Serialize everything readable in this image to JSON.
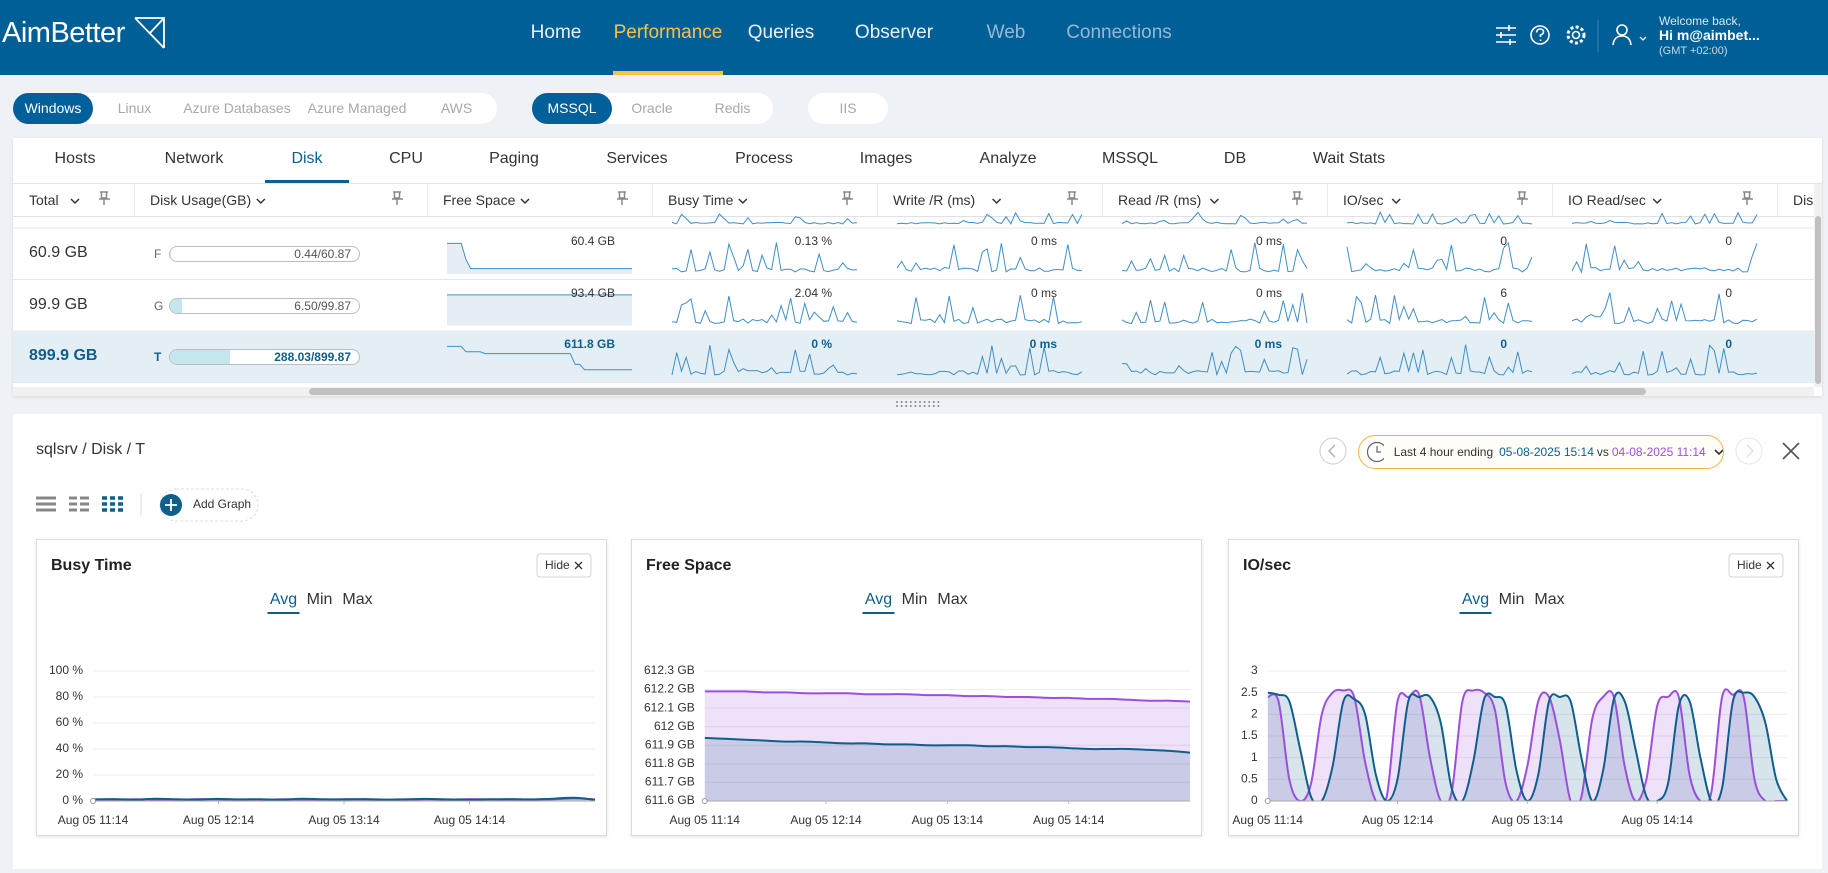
{
  "header": {
    "logo": "AimBetter",
    "nav": [
      {
        "label": "Home"
      },
      {
        "label": "Performance",
        "active": true
      },
      {
        "label": "Queries"
      },
      {
        "label": "Observer"
      },
      {
        "label": "Web",
        "dimmed": true
      },
      {
        "label": "Connections",
        "dimmed": true
      }
    ],
    "welcome": "Welcome back,",
    "user": "Hi m@aimbet...",
    "timezone": "(GMT +02:00)"
  },
  "platforms": [
    [
      {
        "label": "Windows",
        "active": true
      },
      {
        "label": "Linux"
      },
      {
        "label": "Azure Databases"
      },
      {
        "label": "Azure Managed"
      },
      {
        "label": "AWS"
      }
    ],
    [
      {
        "label": "MSSQL",
        "active": true
      },
      {
        "label": "Oracle"
      },
      {
        "label": "Redis"
      }
    ],
    [
      {
        "label": "IIS"
      }
    ]
  ],
  "tabs": [
    {
      "label": "Hosts"
    },
    {
      "label": "Network"
    },
    {
      "label": "Disk",
      "active": true
    },
    {
      "label": "CPU"
    },
    {
      "label": "Paging"
    },
    {
      "label": "Services"
    },
    {
      "label": "Process"
    },
    {
      "label": "Images"
    },
    {
      "label": "Analyze"
    },
    {
      "label": "MSSQL"
    },
    {
      "label": "DB"
    },
    {
      "label": "Wait Stats"
    }
  ],
  "table": {
    "columns": [
      "Total",
      "Disk Usage(GB)",
      "Free Space",
      "Busy Time",
      "Write /R (ms)",
      "Read /R (ms)",
      "IO/sec",
      "IO Read/sec",
      "Disk"
    ],
    "rows": [
      {
        "total": "60.9 GB",
        "drive": "F",
        "usage": "0.44/60.87",
        "free_space": "60.4 GB",
        "busy_time": "0.13 %",
        "write": "0 ms",
        "read": "0 ms",
        "io": "0",
        "io_read": "0"
      },
      {
        "total": "99.9 GB",
        "drive": "G",
        "usage": "6.50/99.87",
        "free_space": "93.4 GB",
        "busy_time": "2.04 %",
        "write": "0 ms",
        "read": "0 ms",
        "io": "6",
        "io_read": "0"
      },
      {
        "total": "899.9 GB",
        "drive": "T",
        "usage": "288.03/899.87",
        "free_space": "611.8 GB",
        "busy_time": "0 %",
        "write": "0 ms",
        "read": "0 ms",
        "io": "0",
        "io_read": "0",
        "selected": true
      }
    ]
  },
  "detail": {
    "breadcrumb": "sqlsrv / Disk / T",
    "range_text": "Last 4 hour ending",
    "range_end": "05-08-2025 15:14",
    "vs": "vs",
    "compare_end": "04-08-2025 11:14",
    "add_graph": "Add Graph"
  },
  "graphs": [
    {
      "type": "line",
      "title": "Busy Time",
      "hide": "Hide",
      "modes": [
        {
          "label": "Avg",
          "active": true
        },
        {
          "label": "Min"
        },
        {
          "label": "Max"
        }
      ],
      "x": [
        0,
        10,
        20,
        30,
        40,
        50,
        60,
        70,
        80,
        90,
        100,
        110,
        120,
        130,
        140,
        150,
        160,
        170,
        180,
        190,
        200,
        210,
        220,
        230,
        240
      ],
      "xlim": [
        0,
        240
      ],
      "xticks": [
        {
          "value": 0,
          "label": "Aug 05 11:14"
        },
        {
          "value": 60,
          "label": "Aug 05 12:14"
        },
        {
          "value": 120,
          "label": "Aug 05 13:14"
        },
        {
          "value": 180,
          "label": "Aug 05 14:14"
        }
      ],
      "ylim": [
        0,
        100
      ],
      "yticks": [
        {
          "value": 0,
          "label": "0 %"
        },
        {
          "value": 20,
          "label": "20 %"
        },
        {
          "value": 40,
          "label": "40 %"
        },
        {
          "value": 60,
          "label": "60 %"
        },
        {
          "value": 80,
          "label": "80 %"
        },
        {
          "value": 100,
          "label": "100 %"
        }
      ],
      "grid": true,
      "series": [
        {
          "color": "#0f5e8c",
          "values": [
            1.2,
            1.5,
            1.0,
            1.8,
            1.3,
            1.1,
            1.6,
            1.2,
            1.4,
            1.0,
            1.7,
            1.3,
            1.2,
            1.5,
            1.1,
            1.4,
            1.6,
            1.2,
            1.0,
            1.3,
            1.5,
            1.2,
            1.8,
            2.5,
            1.0
          ]
        },
        {
          "color": "#9b4fdc",
          "values": [
            0.8,
            1.0,
            1.4,
            1.1,
            0.9,
            1.5,
            1.2,
            1.0,
            0.8,
            1.3,
            1.1,
            0.9,
            1.4,
            1.2,
            1.0,
            0.9,
            1.3,
            1.1,
            1.5,
            1.2,
            0.9,
            1.1,
            1.3,
            2.0,
            1.2
          ]
        }
      ]
    },
    {
      "type": "line",
      "title": "Free Space",
      "modes": [
        {
          "label": "Avg",
          "active": true
        },
        {
          "label": "Min"
        },
        {
          "label": "Max"
        }
      ],
      "x": [
        0,
        10,
        20,
        30,
        40,
        50,
        60,
        70,
        80,
        90,
        100,
        110,
        120,
        130,
        140,
        150,
        160,
        170,
        180,
        190,
        200,
        210,
        220,
        230,
        240
      ],
      "xlim": [
        0,
        240
      ],
      "xticks": [
        {
          "value": 0,
          "label": "Aug 05 11:14"
        },
        {
          "value": 60,
          "label": "Aug 05 12:14"
        },
        {
          "value": 120,
          "label": "Aug 05 13:14"
        },
        {
          "value": 180,
          "label": "Aug 05 14:14"
        }
      ],
      "ylim": [
        611.6,
        612.3
      ],
      "yticks": [
        {
          "value": 611.6,
          "label": "611.6 GB"
        },
        {
          "value": 611.7,
          "label": "611.7 GB"
        },
        {
          "value": 611.8,
          "label": "611.8 GB"
        },
        {
          "value": 611.9,
          "label": "611.9 GB"
        },
        {
          "value": 612,
          "label": "612 GB"
        },
        {
          "value": 612.1,
          "label": "612.1 GB"
        },
        {
          "value": 612.2,
          "label": "612.2 GB"
        },
        {
          "value": 612.3,
          "label": "612.3 GB"
        }
      ],
      "grid": true,
      "series": [
        {
          "color": "#0f5e8c",
          "values": [
            611.94,
            611.935,
            611.93,
            611.925,
            611.92,
            611.92,
            611.915,
            611.91,
            611.91,
            611.905,
            611.905,
            611.9,
            611.9,
            611.9,
            611.895,
            611.895,
            611.89,
            611.89,
            611.885,
            611.88,
            611.88,
            611.88,
            611.875,
            611.87,
            611.86
          ]
        },
        {
          "color": "#9b4fdc",
          "values": [
            612.19,
            612.19,
            612.19,
            612.185,
            612.185,
            612.18,
            612.18,
            612.18,
            612.175,
            612.175,
            612.175,
            612.17,
            612.17,
            612.165,
            612.165,
            612.16,
            612.16,
            612.155,
            612.155,
            612.15,
            612.15,
            612.145,
            612.14,
            612.14,
            612.135
          ]
        }
      ]
    },
    {
      "type": "line",
      "title": "IO/sec",
      "hide": "Hide",
      "modes": [
        {
          "label": "Avg",
          "active": true
        },
        {
          "label": "Min"
        },
        {
          "label": "Max"
        }
      ],
      "x": [
        0,
        5,
        10,
        15,
        20,
        25,
        30,
        35,
        40,
        45,
        50,
        55,
        60,
        65,
        70,
        75,
        80,
        85,
        90,
        95,
        100,
        105,
        110,
        115,
        120,
        125,
        130,
        135,
        140,
        145,
        150,
        155,
        160,
        165,
        170,
        175,
        180,
        185,
        190,
        195,
        200,
        205,
        210,
        215,
        220,
        225,
        230,
        235,
        240
      ],
      "xlim": [
        0,
        240
      ],
      "xticks": [
        {
          "value": 0,
          "label": "Aug 05 11:14"
        },
        {
          "value": 60,
          "label": "Aug 05 12:14"
        },
        {
          "value": 120,
          "label": "Aug 05 13:14"
        },
        {
          "value": 180,
          "label": "Aug 05 14:14"
        }
      ],
      "ylim": [
        0,
        3
      ],
      "yticks": [
        0,
        0.5,
        1,
        1.5,
        2,
        2.5,
        3
      ],
      "grid": true,
      "series": [
        {
          "color": "#0f5e8c",
          "values": [
            2.5,
            2.45,
            2.3,
            1.2,
            0.1,
            0,
            0.8,
            2.3,
            2.35,
            2.0,
            0.6,
            0,
            0.5,
            2.3,
            2.4,
            2.4,
            1.8,
            0.3,
            0,
            0.9,
            2.35,
            2.4,
            2.2,
            0.7,
            0,
            0.6,
            2.3,
            2.4,
            2.3,
            1.0,
            0,
            0.7,
            2.35,
            2.3,
            1.2,
            0.1,
            0,
            0.4,
            2.2,
            2.3,
            1.0,
            0,
            0.3,
            2.3,
            2.5,
            2.4,
            1.8,
            0.5,
            0
          ]
        },
        {
          "color": "#9b4fdc",
          "values": [
            2.4,
            2.3,
            0.5,
            0,
            0.4,
            2.0,
            2.5,
            2.55,
            2.4,
            0.9,
            0,
            0.1,
            2.3,
            2.4,
            2.45,
            1.0,
            0,
            0.2,
            2.3,
            2.55,
            2.5,
            2.1,
            0.4,
            0,
            0.8,
            2.3,
            2.4,
            1.4,
            0,
            0.1,
            1.9,
            2.4,
            2.4,
            0.8,
            0,
            0.5,
            2.2,
            2.4,
            2.4,
            0.6,
            0,
            0.2,
            2.4,
            2.45,
            2.4,
            0.5,
            0,
            0,
            0
          ]
        }
      ]
    }
  ]
}
